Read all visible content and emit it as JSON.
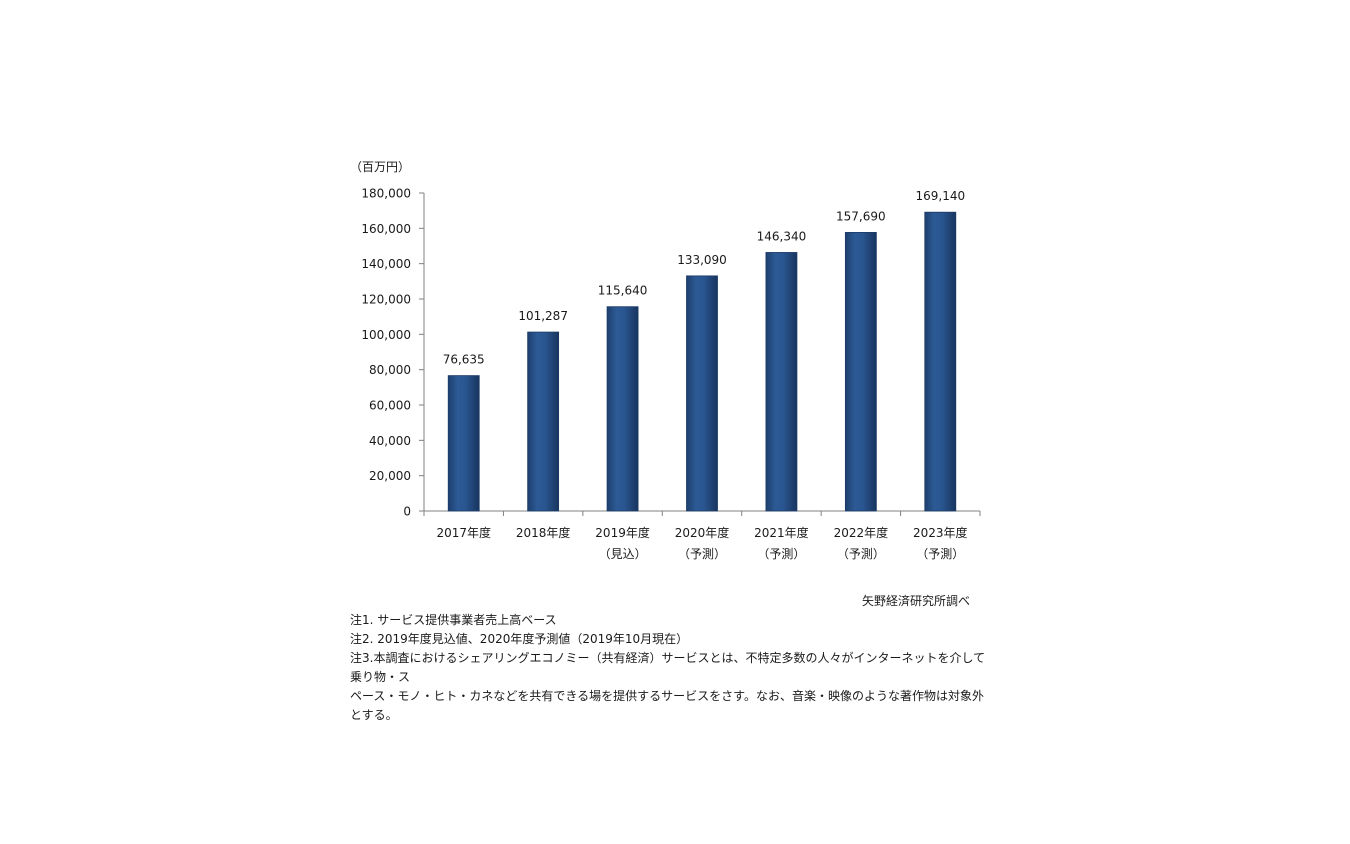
{
  "chart_data": {
    "type": "bar",
    "unit_label": "（百万円）",
    "categories": [
      {
        "line1": "2017年度",
        "line2": ""
      },
      {
        "line1": "2018年度",
        "line2": ""
      },
      {
        "line1": "2019年度",
        "line2": "（見込）"
      },
      {
        "line1": "2020年度",
        "line2": "（予測）"
      },
      {
        "line1": "2021年度",
        "line2": "（予測）"
      },
      {
        "line1": "2022年度",
        "line2": "（予測）"
      },
      {
        "line1": "2023年度",
        "line2": "（予測）"
      }
    ],
    "values": [
      76635,
      101287,
      115640,
      133090,
      146340,
      157690,
      169140
    ],
    "data_labels": [
      "76,635",
      "101,287",
      "115,640",
      "133,090",
      "146,340",
      "157,690",
      "169,140"
    ],
    "ylim": [
      0,
      180000
    ],
    "yticks": [
      0,
      20000,
      40000,
      60000,
      80000,
      100000,
      120000,
      140000,
      160000,
      180000
    ],
    "ytick_labels": [
      "0",
      "20,000",
      "40,000",
      "60,000",
      "80,000",
      "100,000",
      "120,000",
      "140,000",
      "160,000",
      "180,000"
    ],
    "grid": false,
    "bar_color": "#264f86",
    "bar_edge_color": "#1a3a66"
  },
  "source": "矢野経済研究所調べ",
  "notes": [
    "注1. サービス提供事業者売上高ベース",
    "注2. 2019年度見込値、2020年度予測値（2019年10月現在）",
    "注3.本調査におけるシェアリングエコノミー（共有経済）サービスとは、不特定多数の人々がインターネットを介して乗り物・ス",
    "ペース・モノ・ヒト・カネなどを共有できる場を提供するサービスをさす。なお、音楽・映像のような著作物は対象外とする。"
  ]
}
